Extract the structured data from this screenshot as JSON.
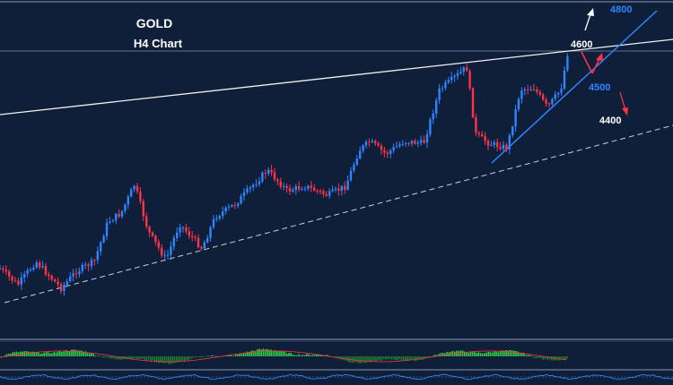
{
  "chart_data": {
    "type": "candlestick",
    "title": "GOLD",
    "subtitle": "H4 Chart",
    "colors": {
      "background": "#0f1f3a",
      "bull": "#2f84ff",
      "bear": "#ff3344",
      "target_up": "#2f84ff",
      "target_down": "#ff3344",
      "oscillator_bull": "#33cc44",
      "oscillator_bear": "#1f7a30",
      "signal": "#ff3344"
    },
    "annotations": [
      {
        "label": "4800",
        "color": "#2f84ff"
      },
      {
        "label": "4600",
        "color": "#ffffff"
      },
      {
        "label": "4500",
        "color": "#2f84ff"
      },
      {
        "label": "4400",
        "color": "#ffffff"
      }
    ]
  }
}
